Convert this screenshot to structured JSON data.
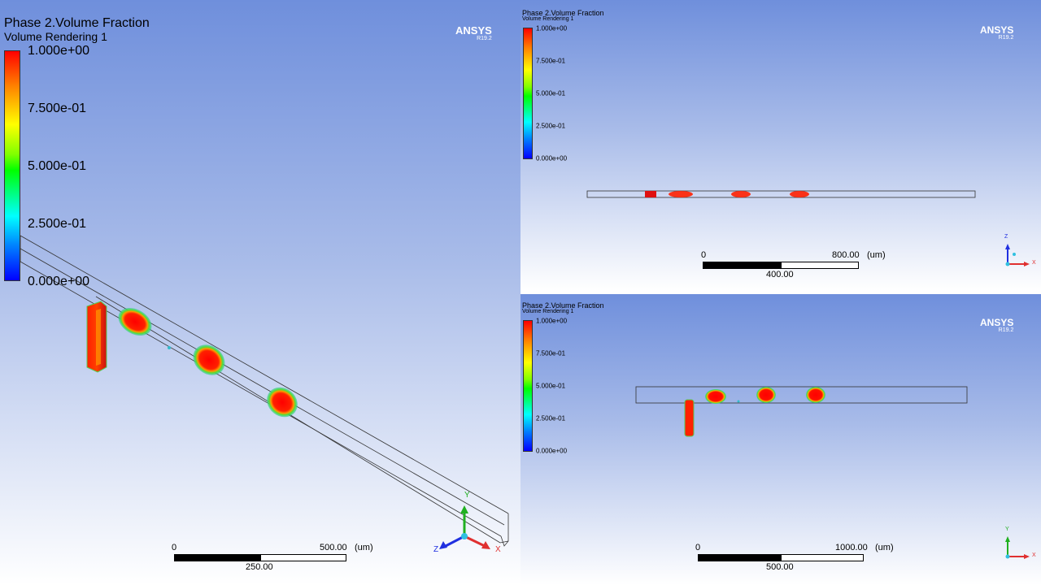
{
  "views": [
    {
      "title": "Phase 2.Volume Fraction",
      "subtitle": "Volume Rendering 1",
      "legend_ticks": [
        "1.000e+00",
        "7.500e-01",
        "5.000e-01",
        "2.500e-01",
        "0.000e+00"
      ],
      "scale": {
        "zero": "0",
        "max": "500.00",
        "unit": "(um)",
        "mid": "250.00"
      },
      "axes": [
        "Y",
        "Z",
        "X"
      ]
    },
    {
      "title": "Phase 2.Volume Fraction",
      "subtitle": "Volume Rendering 1",
      "legend_ticks": [
        "1.000e+00",
        "7.500e-01",
        "5.000e-01",
        "2.500e-01",
        "0.000e+00"
      ],
      "scale": {
        "zero": "0",
        "max": "800.00",
        "unit": "(um)",
        "mid": "400.00"
      },
      "axes": [
        "Z",
        "X"
      ]
    },
    {
      "title": "Phase 2.Volume Fraction",
      "subtitle": "Volume Rendering 1",
      "legend_ticks": [
        "1.000e+00",
        "7.500e-01",
        "5.000e-01",
        "2.500e-01",
        "0.000e+00"
      ],
      "scale": {
        "zero": "0",
        "max": "1000.00",
        "unit": "(um)",
        "mid": "500.00"
      },
      "axes": [
        "Y",
        "X"
      ]
    }
  ],
  "brand": {
    "name": "ANSYS",
    "version": "R19.2"
  },
  "colors": {
    "high": "#ff0000",
    "mid": "#00ff00",
    "low": "#0000ff",
    "bg_top": "#6f8fdc",
    "bg_bottom": "#ffffff",
    "axis_x": "#e03030",
    "axis_y": "#20b020",
    "axis_z": "#2030e0"
  }
}
